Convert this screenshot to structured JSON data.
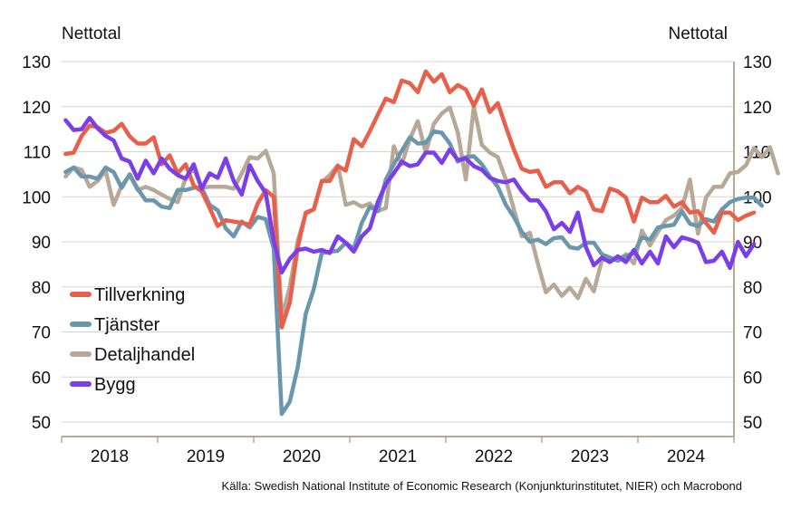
{
  "chart_data": {
    "type": "line",
    "y_axis_title_left": "Nettotal",
    "y_axis_title_right": "Nettotal",
    "ylim": [
      50,
      130
    ],
    "yticks": [
      50,
      60,
      70,
      80,
      90,
      100,
      110,
      120,
      130
    ],
    "x_start": "2018-01",
    "x_end": "2024-12",
    "year_labels": [
      "2018",
      "2019",
      "2020",
      "2021",
      "2022",
      "2023",
      "2024"
    ],
    "grid": true,
    "legend_position": "lower-left",
    "source": "Källa: Swedish National Institute of Economic Research (Konjunkturinstitutet, NIER)  och Macrobond",
    "series": [
      {
        "name": "Tillverkning",
        "color": "#e8604c",
        "values": [
          109.5,
          109.8,
          113.5,
          115.8,
          115.4,
          114.2,
          114.6,
          116.2,
          113.4,
          111.8,
          111.8,
          113.2,
          107.2,
          109.2,
          105.2,
          107.2,
          102.5,
          101.2,
          97.5,
          93.5,
          94.8,
          94.5,
          94.2,
          93.8,
          98.5,
          101.5,
          100.0,
          71.0,
          76.5,
          88.8,
          96.5,
          97.2,
          103.5,
          103.5,
          106.8,
          105.8,
          112.8,
          111.2,
          114.5,
          118.2,
          121.8,
          121.0,
          125.8,
          125.2,
          123.2,
          127.8,
          125.5,
          127.2,
          123.2,
          124.8,
          123.8,
          120.2,
          123.8,
          118.8,
          120.8,
          115.5,
          110.5,
          106.2,
          105.5,
          105.8,
          102.2,
          103.2,
          103.2,
          100.8,
          102.2,
          101.2,
          97.2,
          96.8,
          101.8,
          101.2,
          99.8,
          94.5,
          99.8,
          98.8,
          98.8,
          100.2,
          97.8,
          98.8,
          96.5,
          96.8,
          94.2,
          92.0,
          96.5,
          96.5,
          94.8,
          95.8,
          96.5
        ]
      },
      {
        "name": "Tjänster",
        "color": "#6b97ad",
        "values": [
          105.5,
          106.5,
          104.5,
          104.5,
          104.0,
          106.5,
          105.5,
          102.0,
          105.0,
          101.8,
          99.2,
          99.2,
          97.8,
          97.5,
          101.5,
          101.5,
          102.0,
          102.0,
          98.2,
          97.0,
          93.0,
          91.2,
          94.5,
          93.2,
          95.5,
          95.0,
          88.5,
          51.8,
          54.5,
          62.2,
          74.0,
          79.5,
          87.5,
          87.8,
          88.0,
          89.8,
          88.5,
          94.2,
          97.8,
          96.8,
          103.8,
          107.2,
          110.2,
          113.2,
          111.8,
          112.0,
          114.5,
          114.2,
          111.8,
          107.8,
          108.8,
          109.0,
          107.2,
          104.5,
          102.2,
          98.2,
          95.5,
          92.2,
          90.0,
          90.5,
          89.5,
          90.8,
          91.0,
          88.8,
          88.5,
          89.8,
          89.8,
          87.2,
          86.5,
          85.8,
          86.8,
          87.5,
          91.0,
          90.5,
          93.2,
          93.5,
          93.8,
          96.8,
          94.0,
          93.5,
          95.0,
          94.5,
          97.2,
          98.8,
          99.5,
          99.8,
          99.8,
          98.0
        ]
      },
      {
        "name": "Detaljhandel",
        "color": "#b8a898",
        "values": [
          104.5,
          106.5,
          106.0,
          102.2,
          103.5,
          105.8,
          98.2,
          102.5,
          104.8,
          101.5,
          102.2,
          101.5,
          100.5,
          99.5,
          98.8,
          104.2,
          106.2,
          102.0,
          102.2,
          102.2,
          102.2,
          101.8,
          105.2,
          108.8,
          108.5,
          110.2,
          105.2,
          73.2,
          80.0,
          90.2,
          96.2,
          97.2,
          103.2,
          104.8,
          107.0,
          98.2,
          98.8,
          97.8,
          98.5,
          96.8,
          97.5,
          111.2,
          107.2,
          112.8,
          116.8,
          109.8,
          116.2,
          118.5,
          119.8,
          114.2,
          103.8,
          120.0,
          111.5,
          109.8,
          108.8,
          103.8,
          97.2,
          91.2,
          92.0,
          85.2,
          78.8,
          80.5,
          78.0,
          79.8,
          77.5,
          81.8,
          79.0,
          86.0,
          86.0,
          86.0,
          87.2,
          85.2,
          92.5,
          89.2,
          92.2,
          94.8,
          95.8,
          97.5,
          103.8,
          91.8,
          99.8,
          102.2,
          102.2,
          105.2,
          105.5,
          107.0,
          110.8,
          108.8,
          111.0,
          105.2
        ]
      },
      {
        "name": "Bygg",
        "color": "#7b3fe8",
        "values": [
          117.0,
          114.8,
          115.0,
          117.5,
          115.2,
          113.5,
          112.5,
          108.5,
          107.8,
          104.0,
          108.0,
          105.2,
          108.5,
          106.2,
          104.8,
          104.0,
          107.2,
          101.8,
          105.2,
          104.2,
          108.5,
          103.5,
          100.5,
          107.0,
          103.5,
          100.8,
          90.2,
          83.2,
          86.2,
          88.2,
          88.5,
          87.8,
          88.2,
          87.5,
          91.2,
          89.8,
          87.8,
          91.2,
          93.0,
          98.8,
          102.8,
          105.2,
          107.8,
          106.8,
          107.2,
          109.8,
          109.8,
          107.5,
          110.5,
          108.2,
          108.5,
          106.8,
          106.0,
          104.2,
          103.5,
          103.2,
          103.8,
          101.2,
          99.2,
          99.2,
          96.8,
          92.8,
          94.2,
          92.2,
          96.5,
          88.8,
          84.8,
          86.5,
          85.5,
          86.8,
          85.5,
          88.2,
          85.2,
          87.8,
          85.2,
          91.2,
          88.8,
          91.0,
          90.5,
          89.8,
          85.5,
          85.8,
          87.8,
          84.2,
          90.0,
          86.8,
          89.5
        ]
      }
    ]
  }
}
